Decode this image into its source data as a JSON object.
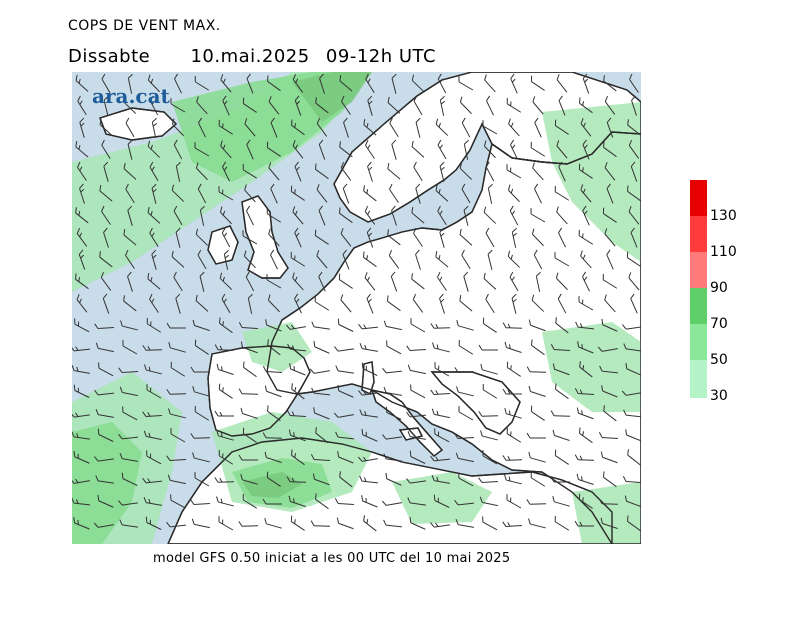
{
  "header": {
    "title": "COPS DE VENT MAX.",
    "day": "Dissabte",
    "date": "10.mai.2025",
    "time_window": "09-12h UTC"
  },
  "brand": {
    "logo_text": "ara.cat"
  },
  "footer": {
    "model_note": "model GFS 0.50 iniciat a les 00 UTC del 10 mai 2025"
  },
  "legend": {
    "labels": [
      "30",
      "50",
      "70",
      "90",
      "110",
      "130"
    ],
    "colors": [
      "#b4f2c8",
      "#8be89a",
      "#5fcf6a",
      "#ff7a7a",
      "#ff3c3c",
      "#e60000"
    ]
  },
  "map": {
    "sea_color": "#c9dcea",
    "land_color": "#ffffff",
    "wind_band_30_color": "#a8e6b4",
    "wind_band_50_color": "#86dc8e",
    "wind_band_70_color": "#78c87e",
    "coast_color": "#2a2a2a",
    "barb_color": "#333333"
  }
}
